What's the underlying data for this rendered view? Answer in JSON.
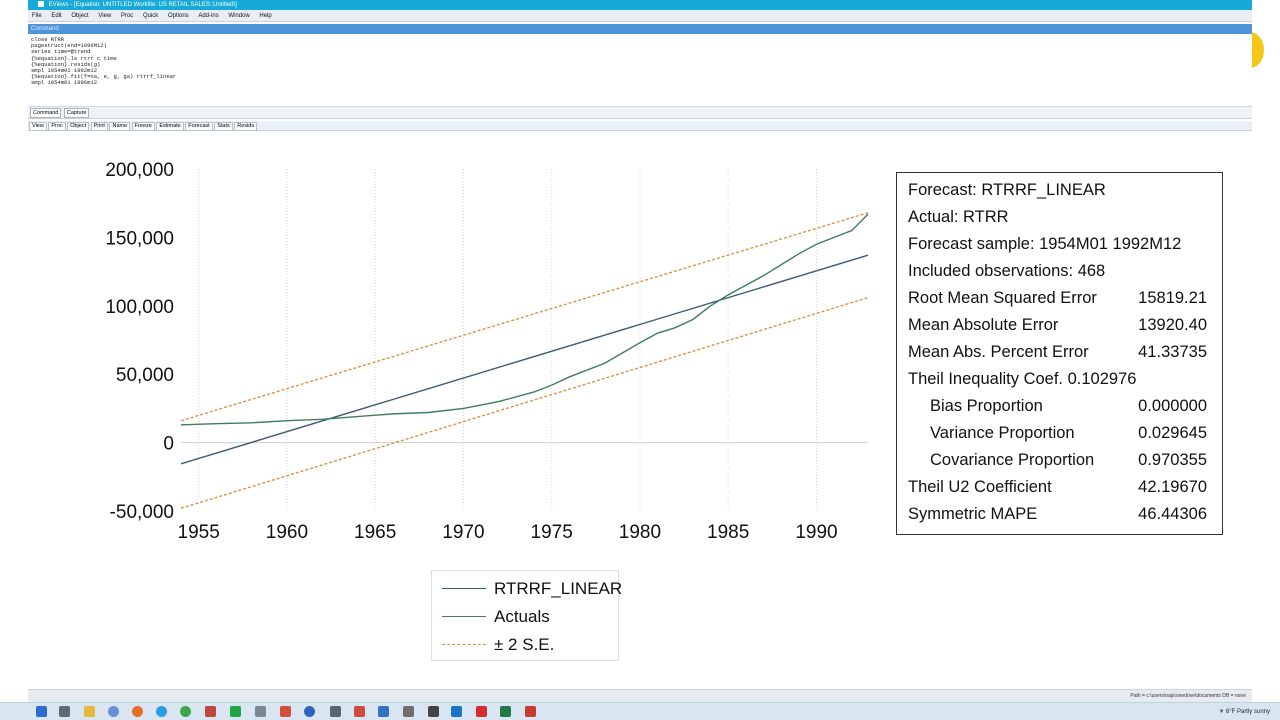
{
  "window": {
    "title": "EViews - [Equation: UNTITLED   Workfile: US RETAIL SALES::Untitled\\]"
  },
  "menu": [
    "File",
    "Edit",
    "Object",
    "View",
    "Proc",
    "Quick",
    "Options",
    "Add-ins",
    "Window",
    "Help"
  ],
  "command_panel": {
    "header": "Command",
    "lines": [
      "close RTRR",
      "pagestruct(end=1996M12)",
      "series time=@trend",
      "{%equation}.ls rtrr c time",
      "{%equation}.resids(g)",
      "smpl 1954m01 1992m12",
      "{%equation}.fit(f=na, e, g, ga) rtrrf_linear",
      "smpl 1954m01 1996m12"
    ],
    "tabs": [
      "Command",
      "Capture"
    ]
  },
  "object_toolbar": [
    "View",
    "Proc",
    "Object",
    "Print",
    "Name",
    "Freeze",
    "Estimate",
    "Forecast",
    "Stats",
    "Resids"
  ],
  "chart_data": {
    "type": "line",
    "y_ticks": [
      "200,000",
      "150,000",
      "100,000",
      "50,000",
      "0",
      "-50,000"
    ],
    "x_ticks": [
      "1955",
      "1960",
      "1965",
      "1970",
      "1975",
      "1980",
      "1985",
      "1990"
    ],
    "ylim": [
      -50000,
      200000
    ],
    "xlim": [
      1954.0,
      1992.92
    ],
    "grid": "vertical dotted",
    "legend_position": "bottom",
    "series": [
      {
        "name": "RTRRF_LINEAR",
        "color": "#3c5a78",
        "style": "solid",
        "x": [
          1954.0,
          1992.92
        ],
        "y": [
          -15500,
          137000
        ]
      },
      {
        "name": "Actuals",
        "color": "#3e7d5a",
        "style": "solid",
        "x": [
          1954.0,
          1956.0,
          1958.0,
          1960.0,
          1962.0,
          1964.0,
          1966.0,
          1968.0,
          1970.0,
          1972.0,
          1974.0,
          1975.0,
          1976.0,
          1978.0,
          1980.0,
          1981.0,
          1982.0,
          1983.0,
          1984.0,
          1985.0,
          1986.0,
          1987.0,
          1988.0,
          1989.0,
          1990.0,
          1991.0,
          1992.0,
          1992.92
        ],
        "y": [
          13000,
          13800,
          14500,
          16000,
          17000,
          19000,
          21000,
          22000,
          25000,
          30000,
          37000,
          42000,
          48000,
          58000,
          73000,
          80000,
          84000,
          90000,
          100000,
          108000,
          115000,
          122000,
          130000,
          138000,
          145000,
          150000,
          155000,
          167000
        ]
      },
      {
        "name": "± 2 S.E.",
        "color": "#d98b3a",
        "style": "dashed",
        "x": [
          1954.0,
          1992.92
        ],
        "y": [
          16000,
          168000
        ],
        "lower_y": [
          -48000,
          106000
        ]
      }
    ]
  },
  "stats": {
    "forecast": "Forecast: RTRRF_LINEAR",
    "actual": "Actual: RTRR",
    "sample": "Forecast sample: 1954M01 1992M12",
    "included": "Included observations: 468",
    "rows": [
      {
        "label": "Root Mean Squared Error",
        "value": "15819.21",
        "indent": false
      },
      {
        "label": "Mean Absolute Error",
        "value": "13920.40",
        "indent": false
      },
      {
        "label": "Mean Abs. Percent Error",
        "value": "41.33735",
        "indent": false
      },
      {
        "label": "Theil Inequality Coef.  0.102976",
        "value": "",
        "indent": false
      },
      {
        "label": "Bias Proportion",
        "value": "0.000000",
        "indent": true
      },
      {
        "label": "Variance Proportion",
        "value": "0.029645",
        "indent": true
      },
      {
        "label": "Covariance Proportion",
        "value": "0.970355",
        "indent": true
      },
      {
        "label": "Theil U2 Coefficient",
        "value": "42.19670",
        "indent": false
      },
      {
        "label": "Symmetric MAPE",
        "value": "46.44306",
        "indent": false
      }
    ]
  },
  "statusbar": "Path = c:\\users\\najs\\onedrive\\documents     DB = none",
  "taskbar": {
    "weather": "6°F  Partly sunny"
  }
}
